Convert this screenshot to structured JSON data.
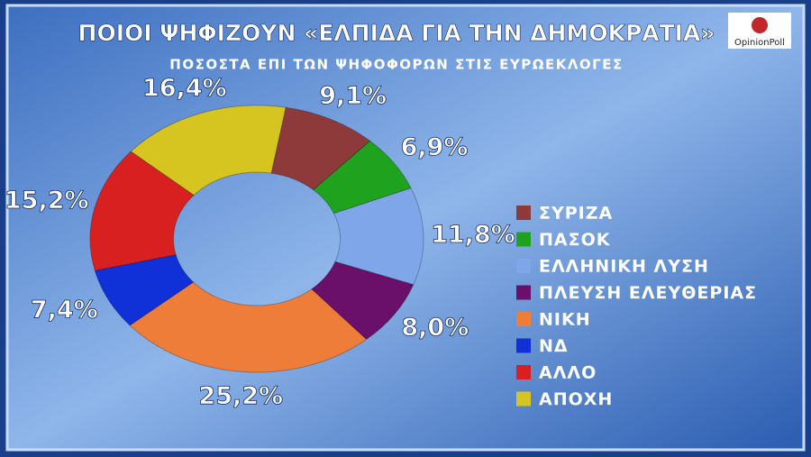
{
  "chart_data": {
    "type": "donut",
    "title": "ΠΟΙΟΙ ΨΗΦΙΖΟΥΝ «ΕΛΠΙΔΑ ΓΙΑ ΤΗΝ ΔΗΜΟΚΡΑΤΙΑ»",
    "subtitle": "ΠΟΣΟΣΤΑ ΕΠΙ ΤΩΝ ΨΗΦΟΦΟΡΩΝ ΣΤΙΣ ΕΥΡΩΕΚΛΟΓΕΣ",
    "logo": "OpinionPoll",
    "categories": [
      "ΣΥΡΙΖΑ",
      "ΠΑΣΟΚ",
      "ΕΛΛΗΝΙΚΗ ΛΥΣΗ",
      "ΠΛΕΥΣΗ ΕΛΕΥΘΕΡΙΑΣ",
      "ΝΙΚΗ",
      "ΝΔ",
      "ΑΛΛΟ",
      "ΑΠΟΧΗ"
    ],
    "values": [
      9.1,
      6.9,
      11.8,
      8.0,
      25.2,
      7.4,
      15.2,
      16.4
    ],
    "value_labels": [
      "9,1%",
      "6,9%",
      "11,8%",
      "8,0%",
      "25,2%",
      "7,4%",
      "15,2%",
      "16,4%"
    ],
    "colors": [
      "#8e3a3a",
      "#1fa31f",
      "#7ea6e8",
      "#6a0f6a",
      "#ee7d3a",
      "#1030d8",
      "#d82020",
      "#d6c420"
    ],
    "legend": "right"
  }
}
